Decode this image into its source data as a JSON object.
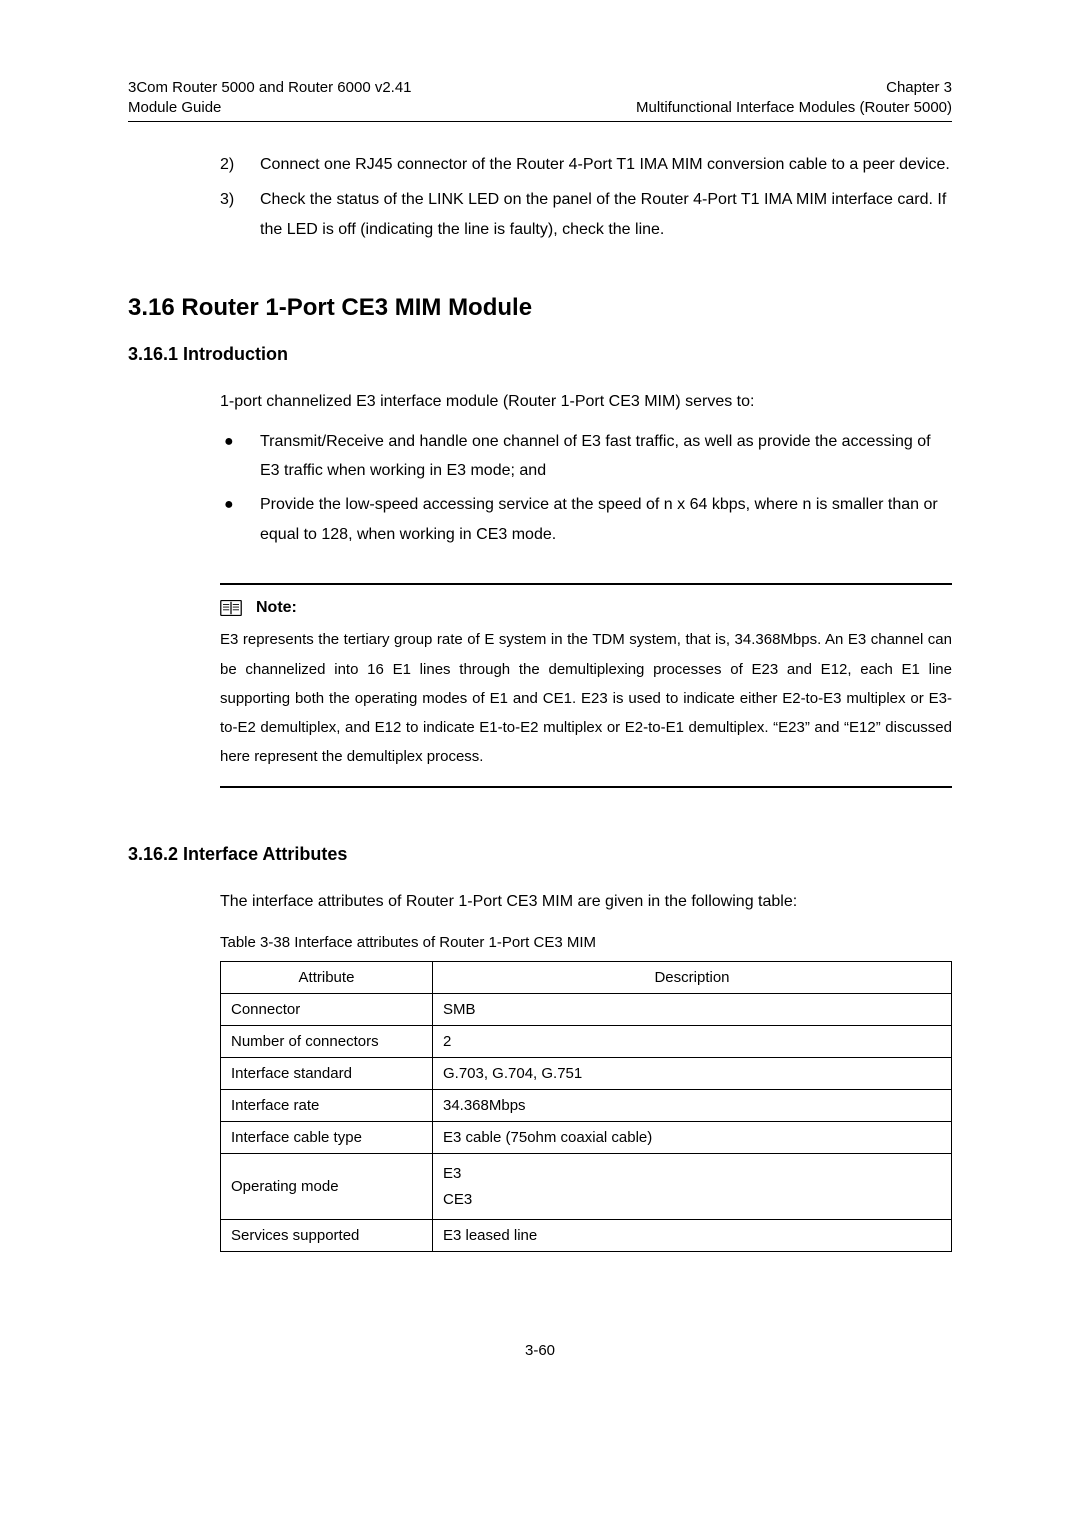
{
  "header": {
    "left_line1": "3Com Router 5000 and Router 6000 v2.41",
    "left_line2": "Module Guide",
    "right_line1": "Chapter 3",
    "right_line2": "Multifunctional Interface Modules (Router 5000)"
  },
  "steps": [
    {
      "num": "2)",
      "text": "Connect one RJ45 connector of the Router 4-Port T1 IMA MIM conversion cable to a peer device."
    },
    {
      "num": "3)",
      "text": "Check the status of the LINK LED on the panel of the Router 4-Port T1 IMA MIM interface card. If the LED is off (indicating the line is faulty), check the line."
    }
  ],
  "section_heading": "3.16  Router 1-Port CE3 MIM Module",
  "intro": {
    "heading": "3.16.1  Introduction",
    "lead": "1-port channelized E3 interface module (Router 1-Port CE3 MIM) serves to:",
    "bullets": [
      "Transmit/Receive and handle one channel of E3 fast traffic, as well as provide the accessing of E3 traffic when working in E3 mode; and",
      "Provide the low-speed accessing service at the speed of n x 64 kbps, where n is smaller than or equal to 128, when working in CE3 mode."
    ]
  },
  "note": {
    "label": "Note:",
    "body": "E3 represents the tertiary group rate of E system in the TDM system, that is, 34.368Mbps. An E3 channel can be channelized into 16 E1 lines through the demultiplexing processes of E23 and E12, each E1 line supporting both the operating modes of E1 and CE1. E23 is used to indicate either E2-to-E3 multiplex or E3-to-E2 demultiplex, and E12 to indicate E1-to-E2 multiplex or E2-to-E1 demultiplex. “E23” and “E12” discussed here represent the demultiplex process."
  },
  "attrs": {
    "heading": "3.16.2  Interface Attributes",
    "lead": "The interface attributes of Router 1-Port CE3 MIM are given in the following table:",
    "caption": "Table 3-38 Interface attributes of Router 1-Port CE3 MIM",
    "col_attr": "Attribute",
    "col_desc": "Description",
    "rows": [
      {
        "a": "Connector",
        "d": "SMB"
      },
      {
        "a": "Number of connectors",
        "d": "2"
      },
      {
        "a": "Interface standard",
        "d": "G.703, G.704, G.751"
      },
      {
        "a": "Interface rate",
        "d": "34.368Mbps"
      },
      {
        "a": "Interface cable type",
        "d": "E3 cable (75ohm coaxial cable)"
      },
      {
        "a": "Operating mode",
        "d": "E3\nCE3"
      },
      {
        "a": "Services supported",
        "d": "E3 leased line"
      }
    ]
  },
  "page_number": "3-60"
}
